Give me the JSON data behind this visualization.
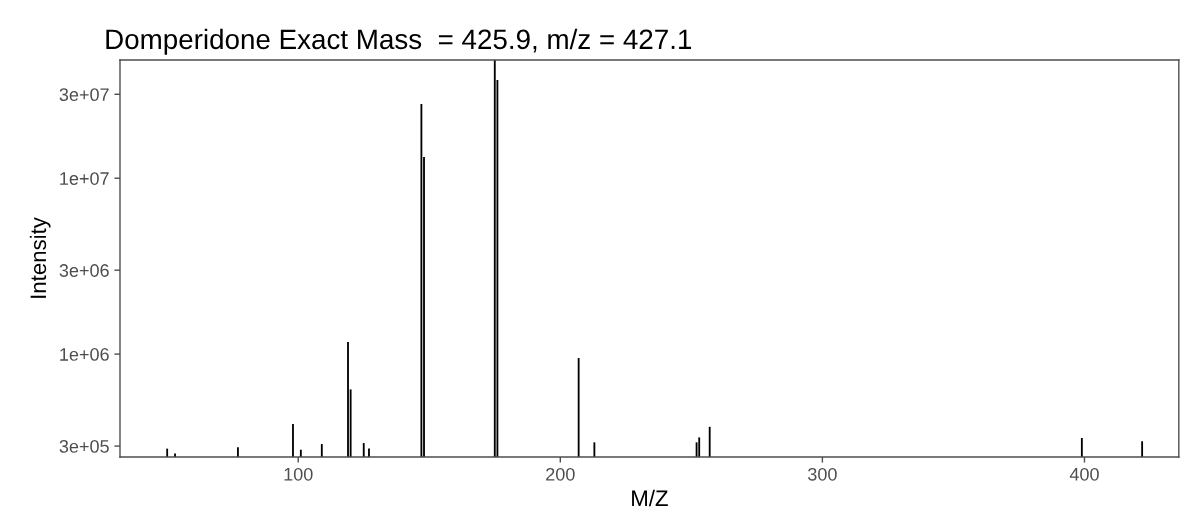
{
  "chart_data": {
    "type": "bar",
    "title": "Domperidone Exact Mass  = 425.9, m/z = 427.1",
    "xlabel": "M/Z",
    "ylabel": "Intensity",
    "x": [
      50,
      53,
      77,
      98,
      101,
      109,
      119,
      120,
      125,
      127,
      147,
      148,
      175,
      176,
      207,
      213,
      252,
      253,
      257,
      399,
      422
    ],
    "values": [
      290000,
      272000,
      295000,
      400000,
      286000,
      308000,
      1170000,
      630000,
      312000,
      291000,
      26400000,
      13200000,
      47000000,
      36200000,
      950000,
      315000,
      315000,
      336000,
      386000,
      333000,
      320000
    ],
    "color": "#000000",
    "log": "y",
    "grid": false,
    "legend": false,
    "xlim": [
      32,
      436
    ],
    "xticks": [
      100,
      200,
      300,
      400
    ],
    "ylim": [
      260000,
      47000000
    ],
    "yticks": [
      {
        "value": 300000,
        "label": "3e+05"
      },
      {
        "value": 1000000,
        "label": "1e+06"
      },
      {
        "value": 3000000,
        "label": "3e+06"
      },
      {
        "value": 10000000,
        "label": "1e+07"
      },
      {
        "value": 30000000,
        "label": "3e+07"
      }
    ]
  }
}
